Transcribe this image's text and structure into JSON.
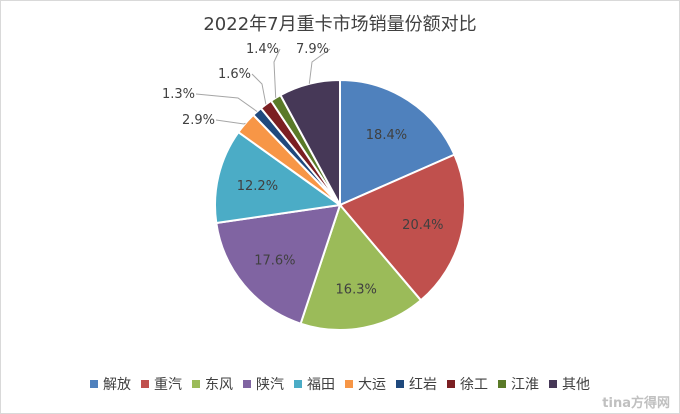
{
  "chart_data": {
    "type": "pie",
    "title": "2022年7月重卡市场销量份额对比",
    "categories": [
      "解放",
      "重汽",
      "东风",
      "陕汽",
      "福田",
      "大运",
      "红岩",
      "徐工",
      "江淮",
      "其他"
    ],
    "values": [
      18.4,
      20.4,
      16.3,
      17.6,
      12.2,
      2.9,
      1.3,
      1.6,
      1.4,
      7.9
    ],
    "labels": [
      "18.4%",
      "20.4%",
      "16.3%",
      "17.6%",
      "12.2%",
      "2.9%",
      "1.3%",
      "1.6%",
      "1.4%",
      "7.9%"
    ],
    "colors": [
      "#4f81bd",
      "#c0504d",
      "#9bbb59",
      "#8064a2",
      "#4bacc6",
      "#f79646",
      "#1f497d",
      "#7b1f22",
      "#5a7a28",
      "#463857"
    ],
    "legend_position": "bottom",
    "start_angle": "12 o'clock",
    "direction": "clockwise"
  },
  "watermark": "tina方得网"
}
